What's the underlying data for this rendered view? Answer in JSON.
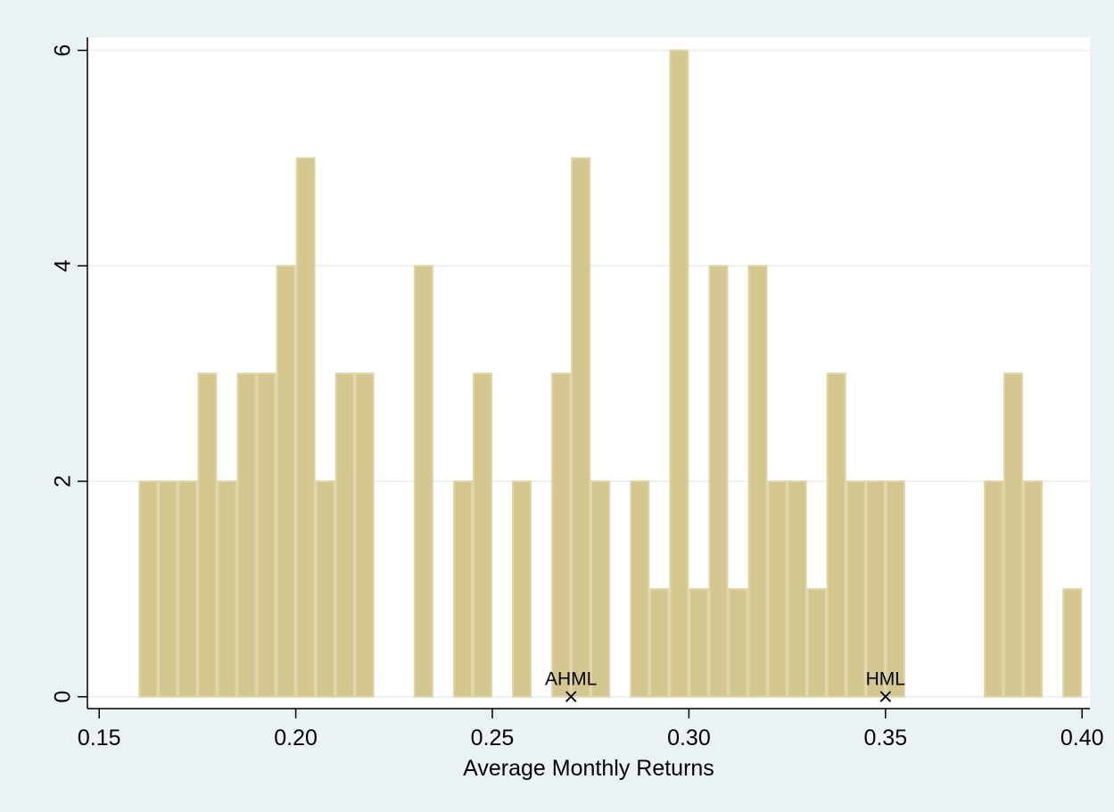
{
  "chart_data": {
    "type": "bar",
    "title": "",
    "xlabel": "Average Monthly Returns",
    "ylabel": "",
    "xlim": [
      0.147,
      0.402
    ],
    "ylim": [
      -0.11,
      6.12
    ],
    "bin_width": 0.005,
    "bins": [
      {
        "x0": 0.16,
        "value": 2
      },
      {
        "x0": 0.165,
        "value": 2
      },
      {
        "x0": 0.17,
        "value": 2
      },
      {
        "x0": 0.175,
        "value": 3
      },
      {
        "x0": 0.18,
        "value": 2
      },
      {
        "x0": 0.185,
        "value": 3
      },
      {
        "x0": 0.19,
        "value": 3
      },
      {
        "x0": 0.195,
        "value": 4
      },
      {
        "x0": 0.2,
        "value": 5
      },
      {
        "x0": 0.205,
        "value": 2
      },
      {
        "x0": 0.21,
        "value": 3
      },
      {
        "x0": 0.215,
        "value": 3
      },
      {
        "x0": 0.23,
        "value": 4
      },
      {
        "x0": 0.24,
        "value": 2
      },
      {
        "x0": 0.245,
        "value": 3
      },
      {
        "x0": 0.255,
        "value": 2
      },
      {
        "x0": 0.265,
        "value": 3
      },
      {
        "x0": 0.27,
        "value": 5
      },
      {
        "x0": 0.275,
        "value": 2
      },
      {
        "x0": 0.285,
        "value": 2
      },
      {
        "x0": 0.29,
        "value": 1
      },
      {
        "x0": 0.295,
        "value": 6
      },
      {
        "x0": 0.3,
        "value": 1
      },
      {
        "x0": 0.305,
        "value": 4
      },
      {
        "x0": 0.31,
        "value": 1
      },
      {
        "x0": 0.315,
        "value": 4
      },
      {
        "x0": 0.32,
        "value": 2
      },
      {
        "x0": 0.325,
        "value": 2
      },
      {
        "x0": 0.33,
        "value": 1
      },
      {
        "x0": 0.335,
        "value": 3
      },
      {
        "x0": 0.34,
        "value": 2
      },
      {
        "x0": 0.345,
        "value": 2
      },
      {
        "x0": 0.35,
        "value": 2
      },
      {
        "x0": 0.375,
        "value": 2
      },
      {
        "x0": 0.38,
        "value": 3
      },
      {
        "x0": 0.385,
        "value": 2
      },
      {
        "x0": 0.395,
        "value": 1
      }
    ],
    "x_ticks": [
      {
        "value": 0.15,
        "label": "0.15"
      },
      {
        "value": 0.2,
        "label": "0.20"
      },
      {
        "value": 0.25,
        "label": "0.25"
      },
      {
        "value": 0.3,
        "label": "0.30"
      },
      {
        "value": 0.35,
        "label": "0.35"
      },
      {
        "value": 0.4,
        "label": "0.40"
      }
    ],
    "y_ticks": [
      {
        "value": 0,
        "label": "0"
      },
      {
        "value": 2,
        "label": "2"
      },
      {
        "value": 4,
        "label": "4"
      },
      {
        "value": 6,
        "label": "6"
      }
    ],
    "annotations": [
      {
        "label": "AHML",
        "x": 0.27,
        "y": 0,
        "marker": "×"
      },
      {
        "label": "HML",
        "x": 0.35,
        "y": 0,
        "marker": "×"
      }
    ],
    "grid": true,
    "legend": "none",
    "colors": {
      "outer_background": "#eaf2f3",
      "plot_background": "#ffffff",
      "bar_fill": "#d3c68f",
      "bar_edge": "#ded5a8",
      "gridline": "#eaf2f3",
      "axis": "#000000"
    }
  }
}
